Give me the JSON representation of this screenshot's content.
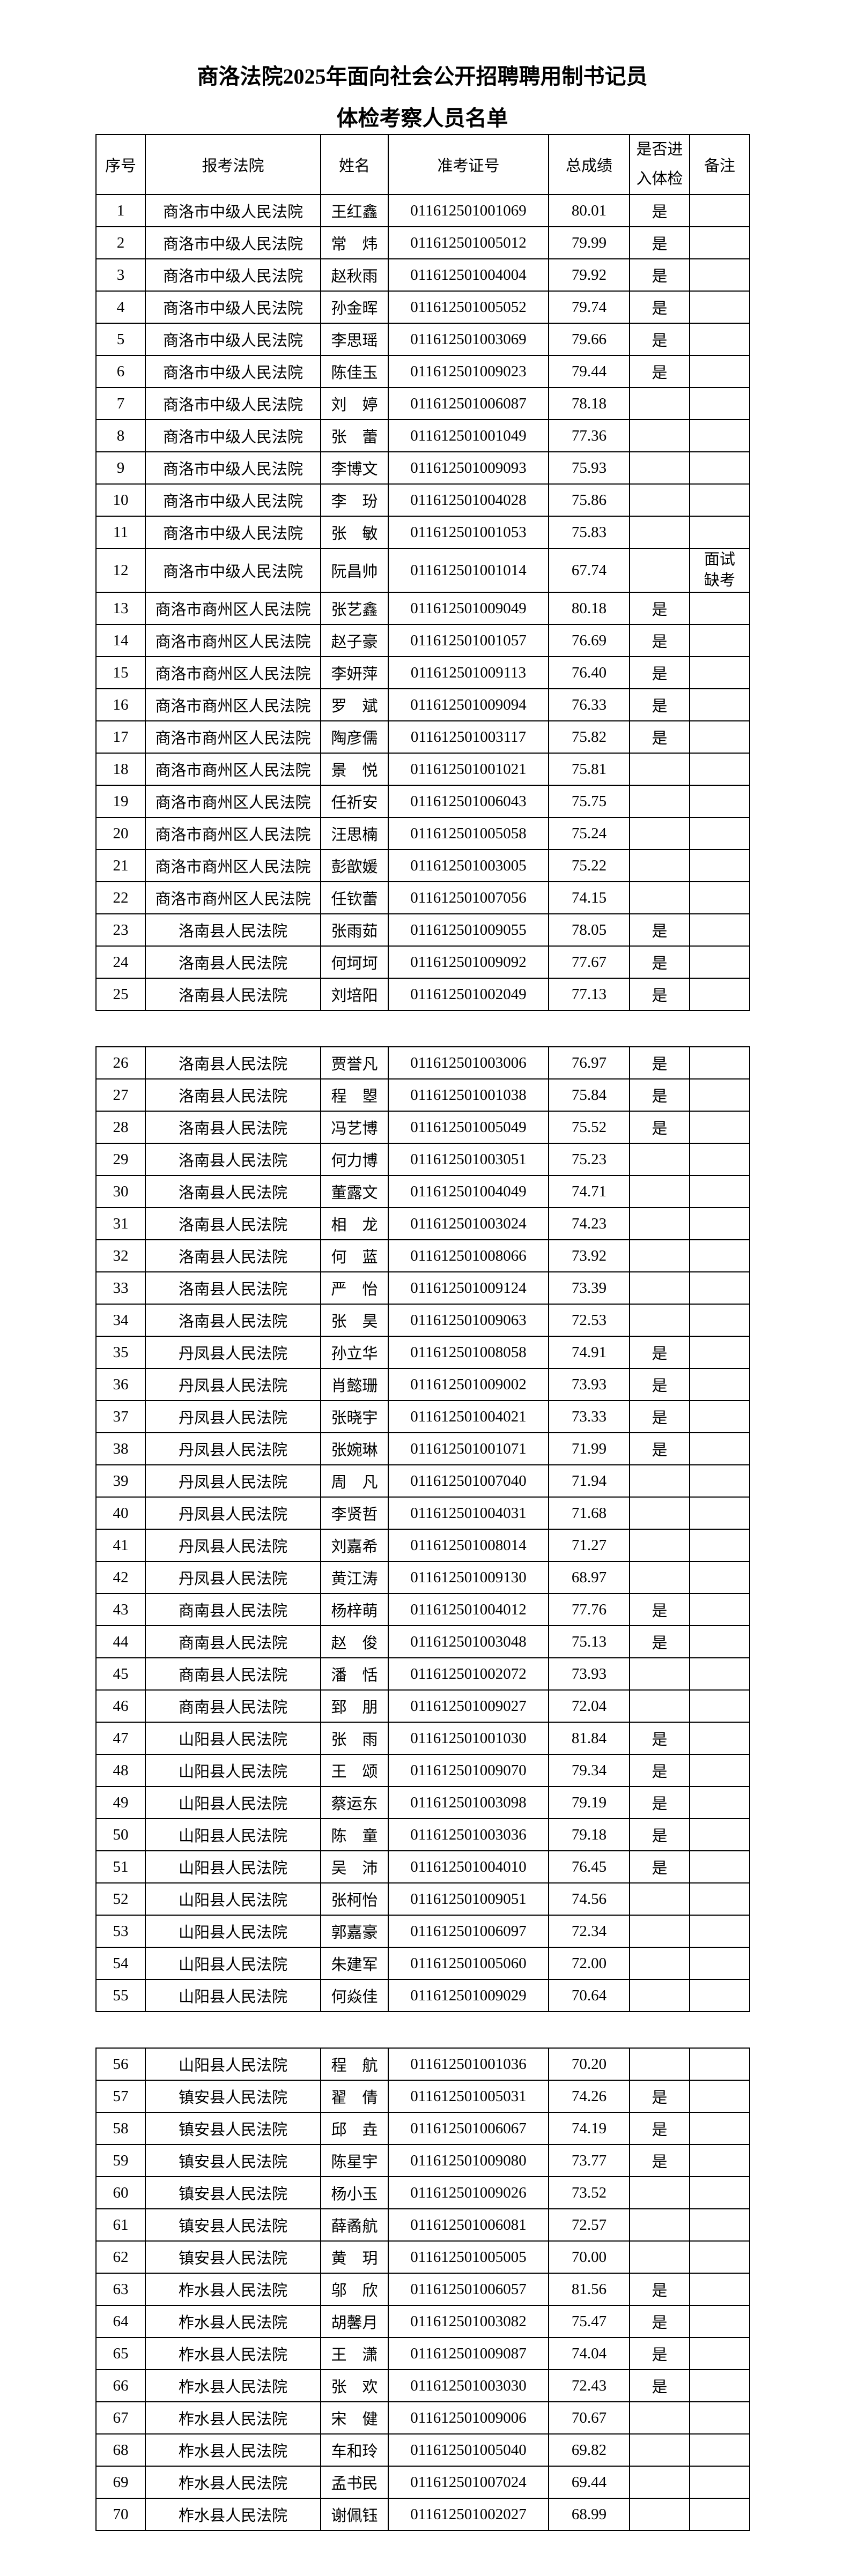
{
  "colors": {
    "text": "#000000",
    "background": "#ffffff",
    "border": "#000000"
  },
  "page": {
    "title_line1": "商洛法院2025年面向社会公开招聘聘用制书记员",
    "title_line2": "体检考察人员名单"
  },
  "table": {
    "headers": {
      "index": "序号",
      "court": "报考法院",
      "name": "姓名",
      "exam_id": "准考证号",
      "score": "总成绩",
      "enter": "是否进入体检",
      "remark": "备注"
    },
    "sections": [
      {
        "rows": [
          {
            "index": "1",
            "court": "商洛市中级人民法院",
            "name": "王红鑫",
            "exam_id": "011612501001069",
            "score": "80.01",
            "enter": "是",
            "remark": ""
          },
          {
            "index": "2",
            "court": "商洛市中级人民法院",
            "name": "常　炜",
            "exam_id": "011612501005012",
            "score": "79.99",
            "enter": "是",
            "remark": ""
          },
          {
            "index": "3",
            "court": "商洛市中级人民法院",
            "name": "赵秋雨",
            "exam_id": "011612501004004",
            "score": "79.92",
            "enter": "是",
            "remark": ""
          },
          {
            "index": "4",
            "court": "商洛市中级人民法院",
            "name": "孙金晖",
            "exam_id": "011612501005052",
            "score": "79.74",
            "enter": "是",
            "remark": ""
          },
          {
            "index": "5",
            "court": "商洛市中级人民法院",
            "name": "李思瑶",
            "exam_id": "011612501003069",
            "score": "79.66",
            "enter": "是",
            "remark": ""
          },
          {
            "index": "6",
            "court": "商洛市中级人民法院",
            "name": "陈佳玉",
            "exam_id": "011612501009023",
            "score": "79.44",
            "enter": "是",
            "remark": ""
          },
          {
            "index": "7",
            "court": "商洛市中级人民法院",
            "name": "刘　婷",
            "exam_id": "011612501006087",
            "score": "78.18",
            "enter": "",
            "remark": ""
          },
          {
            "index": "8",
            "court": "商洛市中级人民法院",
            "name": "张　蕾",
            "exam_id": "011612501001049",
            "score": "77.36",
            "enter": "",
            "remark": ""
          },
          {
            "index": "9",
            "court": "商洛市中级人民法院",
            "name": "李博文",
            "exam_id": "011612501009093",
            "score": "75.93",
            "enter": "",
            "remark": ""
          },
          {
            "index": "10",
            "court": "商洛市中级人民法院",
            "name": "李　玢",
            "exam_id": "011612501004028",
            "score": "75.86",
            "enter": "",
            "remark": ""
          },
          {
            "index": "11",
            "court": "商洛市中级人民法院",
            "name": "张　敏",
            "exam_id": "011612501001053",
            "score": "75.83",
            "enter": "",
            "remark": ""
          },
          {
            "index": "12",
            "court": "商洛市中级人民法院",
            "name": "阮昌帅",
            "exam_id": "011612501001014",
            "score": "67.74",
            "enter": "",
            "remark": "面试缺考",
            "tall": true
          },
          {
            "index": "13",
            "court": "商洛市商州区人民法院",
            "name": "张艺鑫",
            "exam_id": "011612501009049",
            "score": "80.18",
            "enter": "是",
            "remark": ""
          },
          {
            "index": "14",
            "court": "商洛市商州区人民法院",
            "name": "赵子豪",
            "exam_id": "011612501001057",
            "score": "76.69",
            "enter": "是",
            "remark": ""
          },
          {
            "index": "15",
            "court": "商洛市商州区人民法院",
            "name": "李妍萍",
            "exam_id": "011612501009113",
            "score": "76.40",
            "enter": "是",
            "remark": ""
          },
          {
            "index": "16",
            "court": "商洛市商州区人民法院",
            "name": "罗　斌",
            "exam_id": "011612501009094",
            "score": "76.33",
            "enter": "是",
            "remark": ""
          },
          {
            "index": "17",
            "court": "商洛市商州区人民法院",
            "name": "陶彦儒",
            "exam_id": "011612501003117",
            "score": "75.82",
            "enter": "是",
            "remark": ""
          },
          {
            "index": "18",
            "court": "商洛市商州区人民法院",
            "name": "景　悦",
            "exam_id": "011612501001021",
            "score": "75.81",
            "enter": "",
            "remark": ""
          },
          {
            "index": "19",
            "court": "商洛市商州区人民法院",
            "name": "任祈安",
            "exam_id": "011612501006043",
            "score": "75.75",
            "enter": "",
            "remark": ""
          },
          {
            "index": "20",
            "court": "商洛市商州区人民法院",
            "name": "汪思楠",
            "exam_id": "011612501005058",
            "score": "75.24",
            "enter": "",
            "remark": ""
          },
          {
            "index": "21",
            "court": "商洛市商州区人民法院",
            "name": "彭歆媛",
            "exam_id": "011612501003005",
            "score": "75.22",
            "enter": "",
            "remark": ""
          },
          {
            "index": "22",
            "court": "商洛市商州区人民法院",
            "name": "任钦蕾",
            "exam_id": "011612501007056",
            "score": "74.15",
            "enter": "",
            "remark": ""
          },
          {
            "index": "23",
            "court": "洛南县人民法院",
            "name": "张雨茹",
            "exam_id": "011612501009055",
            "score": "78.05",
            "enter": "是",
            "remark": ""
          },
          {
            "index": "24",
            "court": "洛南县人民法院",
            "name": "何坷坷",
            "exam_id": "011612501009092",
            "score": "77.67",
            "enter": "是",
            "remark": ""
          },
          {
            "index": "25",
            "court": "洛南县人民法院",
            "name": "刘培阳",
            "exam_id": "011612501002049",
            "score": "77.13",
            "enter": "是",
            "remark": ""
          }
        ]
      },
      {
        "rows": [
          {
            "index": "26",
            "court": "洛南县人民法院",
            "name": "贾誉凡",
            "exam_id": "011612501003006",
            "score": "76.97",
            "enter": "是",
            "remark": ""
          },
          {
            "index": "27",
            "court": "洛南县人民法院",
            "name": "程　曌",
            "exam_id": "011612501001038",
            "score": "75.84",
            "enter": "是",
            "remark": ""
          },
          {
            "index": "28",
            "court": "洛南县人民法院",
            "name": "冯艺博",
            "exam_id": "011612501005049",
            "score": "75.52",
            "enter": "是",
            "remark": ""
          },
          {
            "index": "29",
            "court": "洛南县人民法院",
            "name": "何力博",
            "exam_id": "011612501003051",
            "score": "75.23",
            "enter": "",
            "remark": ""
          },
          {
            "index": "30",
            "court": "洛南县人民法院",
            "name": "董露文",
            "exam_id": "011612501004049",
            "score": "74.71",
            "enter": "",
            "remark": ""
          },
          {
            "index": "31",
            "court": "洛南县人民法院",
            "name": "相　龙",
            "exam_id": "011612501003024",
            "score": "74.23",
            "enter": "",
            "remark": ""
          },
          {
            "index": "32",
            "court": "洛南县人民法院",
            "name": "何　蓝",
            "exam_id": "011612501008066",
            "score": "73.92",
            "enter": "",
            "remark": ""
          },
          {
            "index": "33",
            "court": "洛南县人民法院",
            "name": "严　怡",
            "exam_id": "011612501009124",
            "score": "73.39",
            "enter": "",
            "remark": ""
          },
          {
            "index": "34",
            "court": "洛南县人民法院",
            "name": "张　昊",
            "exam_id": "011612501009063",
            "score": "72.53",
            "enter": "",
            "remark": ""
          },
          {
            "index": "35",
            "court": "丹凤县人民法院",
            "name": "孙立华",
            "exam_id": "011612501008058",
            "score": "74.91",
            "enter": "是",
            "remark": ""
          },
          {
            "index": "36",
            "court": "丹凤县人民法院",
            "name": "肖懿珊",
            "exam_id": "011612501009002",
            "score": "73.93",
            "enter": "是",
            "remark": ""
          },
          {
            "index": "37",
            "court": "丹凤县人民法院",
            "name": "张晓宇",
            "exam_id": "011612501004021",
            "score": "73.33",
            "enter": "是",
            "remark": ""
          },
          {
            "index": "38",
            "court": "丹凤县人民法院",
            "name": "张婉琳",
            "exam_id": "011612501001071",
            "score": "71.99",
            "enter": "是",
            "remark": ""
          },
          {
            "index": "39",
            "court": "丹凤县人民法院",
            "name": "周　凡",
            "exam_id": "011612501007040",
            "score": "71.94",
            "enter": "",
            "remark": ""
          },
          {
            "index": "40",
            "court": "丹凤县人民法院",
            "name": "李贤哲",
            "exam_id": "011612501004031",
            "score": "71.68",
            "enter": "",
            "remark": ""
          },
          {
            "index": "41",
            "court": "丹凤县人民法院",
            "name": "刘嘉希",
            "exam_id": "011612501008014",
            "score": "71.27",
            "enter": "",
            "remark": ""
          },
          {
            "index": "42",
            "court": "丹凤县人民法院",
            "name": "黄江涛",
            "exam_id": "011612501009130",
            "score": "68.97",
            "enter": "",
            "remark": ""
          },
          {
            "index": "43",
            "court": "商南县人民法院",
            "name": "杨梓萌",
            "exam_id": "011612501004012",
            "score": "77.76",
            "enter": "是",
            "remark": ""
          },
          {
            "index": "44",
            "court": "商南县人民法院",
            "name": "赵　俊",
            "exam_id": "011612501003048",
            "score": "75.13",
            "enter": "是",
            "remark": ""
          },
          {
            "index": "45",
            "court": "商南县人民法院",
            "name": "潘　恬",
            "exam_id": "011612501002072",
            "score": "73.93",
            "enter": "",
            "remark": ""
          },
          {
            "index": "46",
            "court": "商南县人民法院",
            "name": "郅　朋",
            "exam_id": "011612501009027",
            "score": "72.04",
            "enter": "",
            "remark": ""
          },
          {
            "index": "47",
            "court": "山阳县人民法院",
            "name": "张　雨",
            "exam_id": "011612501001030",
            "score": "81.84",
            "enter": "是",
            "remark": ""
          },
          {
            "index": "48",
            "court": "山阳县人民法院",
            "name": "王　颂",
            "exam_id": "011612501009070",
            "score": "79.34",
            "enter": "是",
            "remark": ""
          },
          {
            "index": "49",
            "court": "山阳县人民法院",
            "name": "蔡运东",
            "exam_id": "011612501003098",
            "score": "79.19",
            "enter": "是",
            "remark": ""
          },
          {
            "index": "50",
            "court": "山阳县人民法院",
            "name": "陈　童",
            "exam_id": "011612501003036",
            "score": "79.18",
            "enter": "是",
            "remark": ""
          },
          {
            "index": "51",
            "court": "山阳县人民法院",
            "name": "吴　沛",
            "exam_id": "011612501004010",
            "score": "76.45",
            "enter": "是",
            "remark": ""
          },
          {
            "index": "52",
            "court": "山阳县人民法院",
            "name": "张柯怡",
            "exam_id": "011612501009051",
            "score": "74.56",
            "enter": "",
            "remark": ""
          },
          {
            "index": "53",
            "court": "山阳县人民法院",
            "name": "郭嘉豪",
            "exam_id": "011612501006097",
            "score": "72.34",
            "enter": "",
            "remark": ""
          },
          {
            "index": "54",
            "court": "山阳县人民法院",
            "name": "朱建军",
            "exam_id": "011612501005060",
            "score": "72.00",
            "enter": "",
            "remark": ""
          },
          {
            "index": "55",
            "court": "山阳县人民法院",
            "name": "何焱佳",
            "exam_id": "011612501009029",
            "score": "70.64",
            "enter": "",
            "remark": ""
          }
        ]
      },
      {
        "rows": [
          {
            "index": "56",
            "court": "山阳县人民法院",
            "name": "程　航",
            "exam_id": "011612501001036",
            "score": "70.20",
            "enter": "",
            "remark": ""
          },
          {
            "index": "57",
            "court": "镇安县人民法院",
            "name": "翟　倩",
            "exam_id": "011612501005031",
            "score": "74.26",
            "enter": "是",
            "remark": ""
          },
          {
            "index": "58",
            "court": "镇安县人民法院",
            "name": "邱　垚",
            "exam_id": "011612501006067",
            "score": "74.19",
            "enter": "是",
            "remark": ""
          },
          {
            "index": "59",
            "court": "镇安县人民法院",
            "name": "陈星宇",
            "exam_id": "011612501009080",
            "score": "73.77",
            "enter": "是",
            "remark": ""
          },
          {
            "index": "60",
            "court": "镇安县人民法院",
            "name": "杨小玉",
            "exam_id": "011612501009026",
            "score": "73.52",
            "enter": "",
            "remark": ""
          },
          {
            "index": "61",
            "court": "镇安县人民法院",
            "name": "薛矞航",
            "exam_id": "011612501006081",
            "score": "72.57",
            "enter": "",
            "remark": ""
          },
          {
            "index": "62",
            "court": "镇安县人民法院",
            "name": "黄　玥",
            "exam_id": "011612501005005",
            "score": "70.00",
            "enter": "",
            "remark": ""
          },
          {
            "index": "63",
            "court": "柞水县人民法院",
            "name": "邬　欣",
            "exam_id": "011612501006057",
            "score": "81.56",
            "enter": "是",
            "remark": ""
          },
          {
            "index": "64",
            "court": "柞水县人民法院",
            "name": "胡馨月",
            "exam_id": "011612501003082",
            "score": "75.47",
            "enter": "是",
            "remark": ""
          },
          {
            "index": "65",
            "court": "柞水县人民法院",
            "name": "王　潇",
            "exam_id": "011612501009087",
            "score": "74.04",
            "enter": "是",
            "remark": ""
          },
          {
            "index": "66",
            "court": "柞水县人民法院",
            "name": "张　欢",
            "exam_id": "011612501003030",
            "score": "72.43",
            "enter": "是",
            "remark": ""
          },
          {
            "index": "67",
            "court": "柞水县人民法院",
            "name": "宋　健",
            "exam_id": "011612501009006",
            "score": "70.67",
            "enter": "",
            "remark": ""
          },
          {
            "index": "68",
            "court": "柞水县人民法院",
            "name": "车和玲",
            "exam_id": "011612501005040",
            "score": "69.82",
            "enter": "",
            "remark": ""
          },
          {
            "index": "69",
            "court": "柞水县人民法院",
            "name": "孟书民",
            "exam_id": "011612501007024",
            "score": "69.44",
            "enter": "",
            "remark": ""
          },
          {
            "index": "70",
            "court": "柞水县人民法院",
            "name": "谢佩钰",
            "exam_id": "011612501002027",
            "score": "68.99",
            "enter": "",
            "remark": ""
          }
        ]
      }
    ]
  }
}
